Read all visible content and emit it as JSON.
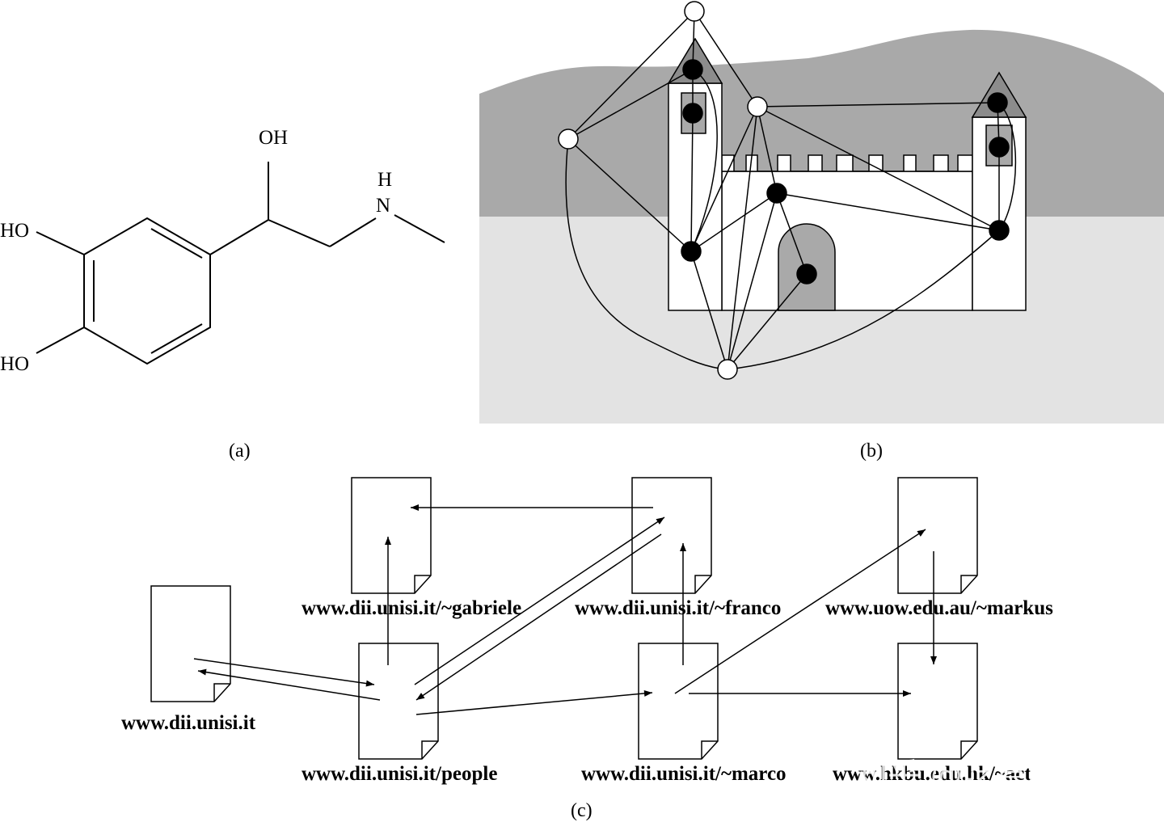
{
  "panel_a": {
    "caption": "(a)",
    "labels": {
      "oh_top": "OH",
      "h": "H",
      "n": "N",
      "ho_upper": "HO",
      "ho_lower": "HO"
    }
  },
  "panel_b": {
    "caption": "(b)"
  },
  "panel_c": {
    "caption": "(c)",
    "pages": {
      "root": "www.dii.unisi.it",
      "people": "www.dii.unisi.it/people",
      "gabriele": "www.dii.unisi.it/~gabriele",
      "franco": "www.dii.unisi.it/~franco",
      "marco": "www.dii.unisi.it/~marco",
      "markus": "www.uow.edu.au/~markus",
      "act": "www.hkbu.edu.hk/~act"
    }
  },
  "watermark": "知乎 @吃草的牛牛",
  "colors": {
    "mountain": "#a9a9a9",
    "ground": "#e3e3e3",
    "roof": "#8c8c8c",
    "window_fill": "#a9a9a9",
    "castle": "#ffffff"
  }
}
